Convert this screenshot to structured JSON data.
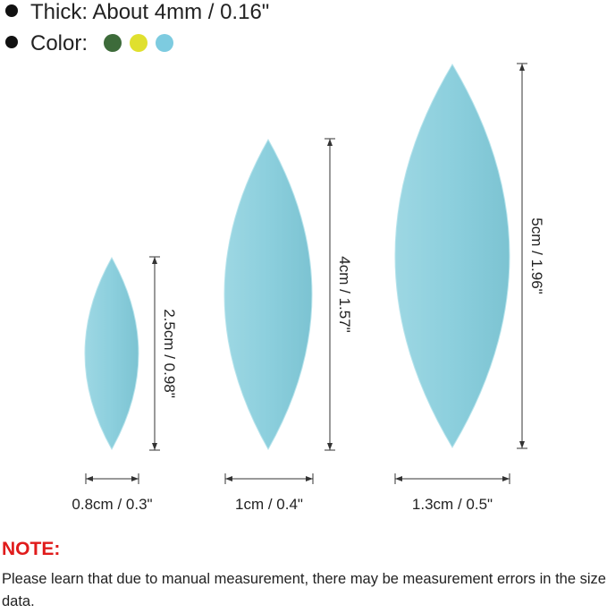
{
  "bullets": [
    "Thick: About 4mm / 0.16\"",
    "Color:"
  ],
  "items": [
    {
      "height_label": "2.5cm / 0.98\"",
      "width_label": "0.8cm / 0.3\""
    },
    {
      "height_label": "4cm / 1.57\"",
      "width_label": "1cm / 0.4\""
    },
    {
      "height_label": "5cm / 1.96\"",
      "width_label": "1.3cm / 0.5\""
    }
  ],
  "note": {
    "title": "NOTE:",
    "text": "Please learn that due to manual measurement, there may be measurement errors in the size data."
  }
}
